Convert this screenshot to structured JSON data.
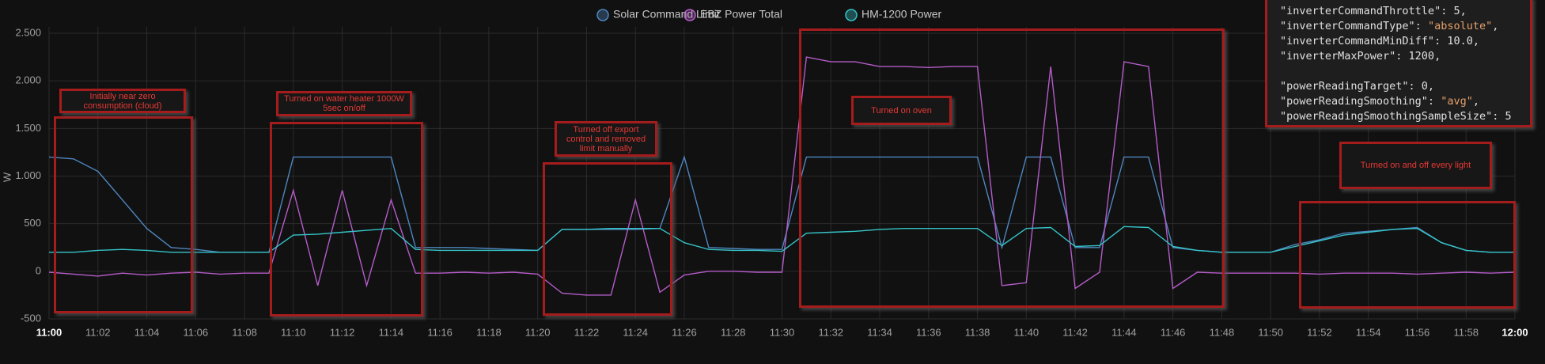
{
  "chart_data": {
    "type": "line",
    "y_label": "W",
    "xlim": [
      "11:00",
      "12:00"
    ],
    "xticks": [
      "11:00",
      "11:02",
      "11:04",
      "11:06",
      "11:08",
      "11:10",
      "11:12",
      "11:14",
      "11:16",
      "11:18",
      "11:20",
      "11:22",
      "11:24",
      "11:26",
      "11:28",
      "11:30",
      "11:32",
      "11:34",
      "11:36",
      "11:38",
      "11:40",
      "11:42",
      "11:44",
      "11:46",
      "11:48",
      "11:50",
      "11:52",
      "11:54",
      "11:56",
      "11:58",
      "12:00"
    ],
    "ylim": [
      -500,
      2500
    ],
    "yticks": [
      -500,
      0,
      500,
      {
        "value": 1000,
        "label": "1.000"
      },
      {
        "value": 1500,
        "label": "1.500"
      },
      {
        "value": 2000,
        "label": "2.000"
      },
      {
        "value": 2500,
        "label": "2.500"
      }
    ],
    "grid": true,
    "legend": "top",
    "x": [
      "11:00",
      "11:01",
      "11:02",
      "11:03",
      "11:04",
      "11:05",
      "11:06",
      "11:07",
      "11:08",
      "11:09",
      "11:10",
      "11:11",
      "11:12",
      "11:13",
      "11:14",
      "11:15",
      "11:16",
      "11:17",
      "11:18",
      "11:19",
      "11:20",
      "11:21",
      "11:22",
      "11:23",
      "11:24",
      "11:25",
      "11:26",
      "11:27",
      "11:28",
      "11:29",
      "11:30",
      "11:31",
      "11:32",
      "11:33",
      "11:34",
      "11:35",
      "11:36",
      "11:37",
      "11:38",
      "11:39",
      "11:40",
      "11:41",
      "11:42",
      "11:43",
      "11:44",
      "11:45",
      "11:46",
      "11:47",
      "11:48",
      "11:49",
      "11:50",
      "11:51",
      "11:52",
      "11:53",
      "11:54",
      "11:55",
      "11:56",
      "11:57",
      "11:58",
      "11:59",
      "12:00"
    ],
    "series": [
      {
        "name": "Solar Command Limit",
        "color": "#4f86c0",
        "values": [
          1200,
          1180,
          1050,
          750,
          450,
          250,
          230,
          200,
          200,
          200,
          1200,
          1200,
          1200,
          1200,
          1200,
          250,
          250,
          250,
          240,
          230,
          220,
          440,
          440,
          440,
          440,
          450,
          1200,
          250,
          240,
          230,
          230,
          1200,
          1200,
          1200,
          1200,
          1200,
          1200,
          1200,
          1200,
          250,
          1200,
          1200,
          250,
          250,
          1200,
          1200,
          250,
          220,
          200,
          200,
          200,
          280,
          330,
          400,
          420,
          440,
          460,
          300,
          220,
          200,
          200
        ]
      },
      {
        "name": "EBZ Power Total",
        "color": "#b45cc8",
        "values": [
          -10,
          -30,
          -50,
          -20,
          -40,
          -20,
          -10,
          -30,
          -20,
          -20,
          850,
          -150,
          850,
          -150,
          750,
          -20,
          -20,
          -10,
          -20,
          -10,
          -30,
          -230,
          -250,
          -250,
          750,
          -220,
          -40,
          0,
          0,
          -10,
          -10,
          2250,
          2200,
          2200,
          2150,
          2150,
          2140,
          2150,
          2150,
          -150,
          -120,
          2150,
          -180,
          -10,
          2200,
          2150,
          -180,
          -10,
          -20,
          -20,
          -20,
          -20,
          -30,
          -20,
          -20,
          -20,
          -30,
          -20,
          -10,
          -20,
          -10
        ]
      },
      {
        "name": "HM-1200 Power",
        "color": "#35c4c8",
        "values": [
          200,
          200,
          220,
          230,
          220,
          200,
          200,
          200,
          200,
          200,
          380,
          390,
          410,
          430,
          450,
          230,
          220,
          220,
          220,
          220,
          220,
          440,
          440,
          450,
          450,
          450,
          300,
          230,
          220,
          220,
          210,
          400,
          410,
          420,
          440,
          450,
          450,
          450,
          450,
          270,
          450,
          460,
          260,
          270,
          470,
          460,
          260,
          220,
          200,
          200,
          200,
          260,
          320,
          380,
          410,
          440,
          450,
          300,
          220,
          200,
          200
        ]
      }
    ],
    "annotations": [
      {
        "text": "Initially near zero consumption (cloud)"
      },
      {
        "text": "Turned on water heater 1000W 5sec on/off"
      },
      {
        "text": "Turned off export control and removed limit manually"
      },
      {
        "text": "Turned on oven"
      },
      {
        "text": "Turned on and off every light"
      }
    ]
  },
  "config_panel": {
    "groups": [
      [
        "\"inverterCommandThrottle\": 5,",
        "\"inverterCommandType\": \"absolute\",",
        "\"inverterCommandMinDiff\": 10.0,",
        "\"inverterMaxPower\": 1200,"
      ],
      [
        "\"powerReadingTarget\": 0,",
        "\"powerReadingSmoothing\": \"avg\",",
        "\"powerReadingSmoothingSampleSize\": 5"
      ]
    ]
  }
}
